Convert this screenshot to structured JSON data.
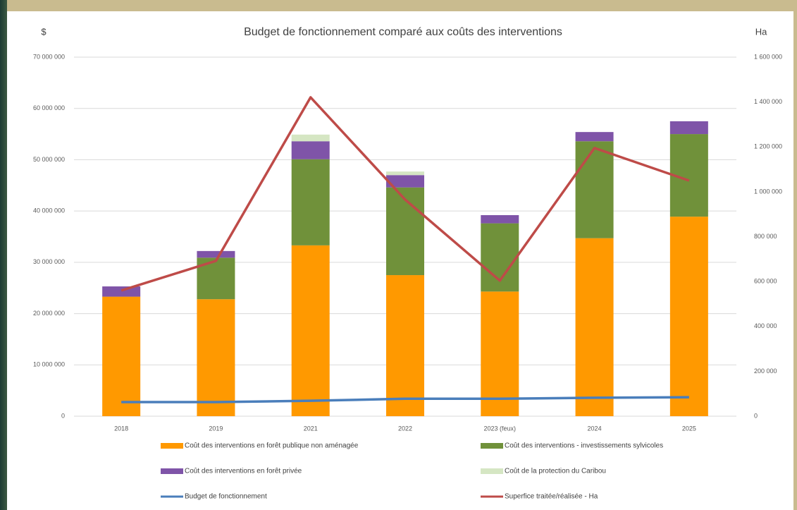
{
  "chart_data": {
    "type": "bar",
    "stacked": true,
    "title": "Budget de fonctionnement comparé aux coûts des interventions",
    "y_label": "$",
    "y2_label": "Ha",
    "categories": [
      "2018",
      "2019",
      "2021",
      "2022",
      "2023 (feux)",
      "2024",
      "2025"
    ],
    "series": [
      {
        "name": "Coût des interventions en forêt publique non aménagée",
        "type": "bar",
        "color": "#ff9900",
        "values": [
          23300000,
          22800000,
          33300000,
          27500000,
          24300000,
          34700000,
          38900000
        ]
      },
      {
        "name": "Coût des interventions - investissements sylvicoles",
        "type": "bar",
        "color": "#70913a",
        "values": [
          0,
          8100000,
          16800000,
          17100000,
          13300000,
          18900000,
          16100000
        ]
      },
      {
        "name": "Coût des interventions en forêt privée",
        "type": "bar",
        "color": "#7f54a8",
        "values": [
          2000000,
          1300000,
          3500000,
          2400000,
          1600000,
          1800000,
          2500000
        ]
      },
      {
        "name": "Coût de la protection du Caribou",
        "type": "bar",
        "color": "#d5e6c3",
        "values": [
          0,
          0,
          1300000,
          700000,
          0,
          0,
          0
        ]
      },
      {
        "name": "Budget de fonctionnement",
        "type": "line",
        "color": "#4a7ebb",
        "values": [
          2750000,
          2750000,
          3000000,
          3400000,
          3400000,
          3600000,
          3700000
        ]
      },
      {
        "name": "Superfice traitée/réalisée - Ha",
        "type": "line",
        "axis": "y2",
        "color": "#be4b48",
        "values": [
          560000,
          692000,
          1421000,
          965000,
          604000,
          1195000,
          1050000
        ]
      }
    ],
    "ylim": [
      0,
      70000000
    ],
    "yticks": [
      0,
      {
        "value": 10000000,
        "label": "10 000 000"
      },
      {
        "value": 20000000,
        "label": "20 000 000"
      },
      {
        "value": 30000000,
        "label": "30 000 000"
      },
      {
        "value": 40000000,
        "label": "40 000 000"
      },
      {
        "value": 50000000,
        "label": "50 000 000"
      },
      {
        "value": 60000000,
        "label": "60 000 000"
      },
      {
        "value": 70000000,
        "label": "70 000 000"
      }
    ],
    "y2lim": [
      0,
      1600000
    ],
    "y2ticks": [
      0,
      {
        "value": 200000,
        "label": "200 000"
      },
      {
        "value": 400000,
        "label": "400 000"
      },
      {
        "value": 600000,
        "label": "600 000"
      },
      {
        "value": 800000,
        "label": "800 000"
      },
      {
        "value": 1000000,
        "label": "1 000 000"
      },
      {
        "value": 1200000,
        "label": "1 200 000"
      },
      {
        "value": 1400000,
        "label": "1 400 000"
      },
      {
        "value": 1600000,
        "label": "1 600 000"
      }
    ],
    "grid": true,
    "legend": "bottom"
  }
}
